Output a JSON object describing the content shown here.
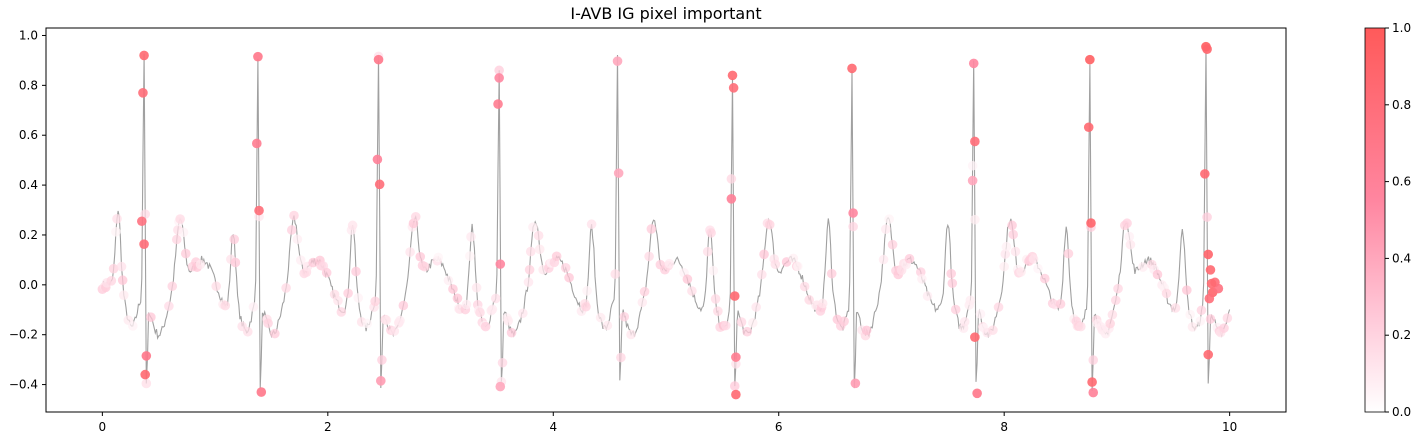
{
  "chart_data": {
    "type": "line+scatter",
    "title": "I-AVB IG pixel important",
    "xlabel": "",
    "ylabel": "",
    "xlim": [
      -0.5,
      10.5
    ],
    "ylim": [
      -0.51,
      1.03
    ],
    "x_ticks": [
      0,
      2,
      4,
      6,
      8,
      10
    ],
    "y_ticks": [
      -0.4,
      -0.2,
      0.0,
      0.2,
      0.4,
      0.6,
      0.8,
      1.0
    ],
    "colorbar": {
      "min": 0.0,
      "max": 1.0,
      "ticks": [
        0.0,
        0.2,
        0.4,
        0.6,
        0.8,
        1.0
      ],
      "low_color": "#ffffff",
      "high_color": "#ff5a5a"
    },
    "line_color": "#a0a0a0",
    "beat_times": [
      0.14,
      1.16,
      2.22,
      3.28,
      4.34,
      5.39,
      6.44,
      7.5,
      8.55,
      9.58
    ],
    "r_peaks": [
      {
        "x": 0.37,
        "y": 0.92
      },
      {
        "x": 1.38,
        "y": 0.915
      },
      {
        "x": 2.45,
        "y": 0.903
      },
      {
        "x": 3.52,
        "y": 0.83
      },
      {
        "x": 4.57,
        "y": 0.897
      },
      {
        "x": 5.59,
        "y": 0.84
      },
      {
        "x": 6.65,
        "y": 0.868
      },
      {
        "x": 7.73,
        "y": 0.888
      },
      {
        "x": 8.76,
        "y": 0.903
      },
      {
        "x": 9.79,
        "y": 0.955
      }
    ],
    "highlighted_points": [
      {
        "x": 0.37,
        "y": 0.92,
        "v": 0.85
      },
      {
        "x": 0.36,
        "y": 0.77,
        "v": 0.8
      },
      {
        "x": 0.35,
        "y": 0.255,
        "v": 0.75
      },
      {
        "x": 0.37,
        "y": 0.163,
        "v": 0.8
      },
      {
        "x": 0.39,
        "y": -0.285,
        "v": 0.7
      },
      {
        "x": 0.38,
        "y": -0.36,
        "v": 0.85
      },
      {
        "x": 1.38,
        "y": 0.915,
        "v": 0.7
      },
      {
        "x": 1.37,
        "y": 0.567,
        "v": 0.65
      },
      {
        "x": 1.39,
        "y": 0.298,
        "v": 0.8
      },
      {
        "x": 1.41,
        "y": -0.43,
        "v": 0.7
      },
      {
        "x": 2.45,
        "y": 0.903,
        "v": 0.7
      },
      {
        "x": 2.44,
        "y": 0.503,
        "v": 0.6
      },
      {
        "x": 2.46,
        "y": 0.403,
        "v": 0.8
      },
      {
        "x": 2.47,
        "y": -0.385,
        "v": 0.45
      },
      {
        "x": 3.52,
        "y": 0.83,
        "v": 0.55
      },
      {
        "x": 3.51,
        "y": 0.725,
        "v": 0.65
      },
      {
        "x": 3.53,
        "y": 0.083,
        "v": 0.55
      },
      {
        "x": 3.53,
        "y": -0.408,
        "v": 0.4
      },
      {
        "x": 4.57,
        "y": 0.897,
        "v": 0.4
      },
      {
        "x": 4.58,
        "y": 0.448,
        "v": 0.4
      },
      {
        "x": 5.59,
        "y": 0.84,
        "v": 0.85
      },
      {
        "x": 5.6,
        "y": 0.79,
        "v": 0.8
      },
      {
        "x": 5.58,
        "y": 0.345,
        "v": 0.6
      },
      {
        "x": 5.61,
        "y": -0.045,
        "v": 0.85
      },
      {
        "x": 5.62,
        "y": -0.29,
        "v": 0.65
      },
      {
        "x": 5.62,
        "y": -0.44,
        "v": 0.85
      },
      {
        "x": 6.65,
        "y": 0.868,
        "v": 0.85
      },
      {
        "x": 6.66,
        "y": 0.288,
        "v": 0.55
      },
      {
        "x": 6.68,
        "y": -0.395,
        "v": 0.45
      },
      {
        "x": 7.73,
        "y": 0.888,
        "v": 0.55
      },
      {
        "x": 7.74,
        "y": 0.575,
        "v": 0.8
      },
      {
        "x": 7.74,
        "y": -0.21,
        "v": 0.85
      },
      {
        "x": 7.76,
        "y": -0.435,
        "v": 0.7
      },
      {
        "x": 7.72,
        "y": 0.418,
        "v": 0.4
      },
      {
        "x": 8.76,
        "y": 0.903,
        "v": 0.95
      },
      {
        "x": 8.75,
        "y": 0.632,
        "v": 0.85
      },
      {
        "x": 8.77,
        "y": 0.248,
        "v": 0.9
      },
      {
        "x": 8.78,
        "y": -0.39,
        "v": 0.85
      },
      {
        "x": 8.79,
        "y": -0.432,
        "v": 0.6
      },
      {
        "x": 9.79,
        "y": 0.955,
        "v": 0.95
      },
      {
        "x": 9.8,
        "y": 0.945,
        "v": 0.9
      },
      {
        "x": 9.78,
        "y": 0.445,
        "v": 0.85
      },
      {
        "x": 9.81,
        "y": 0.122,
        "v": 0.9
      },
      {
        "x": 9.83,
        "y": 0.06,
        "v": 0.85
      },
      {
        "x": 9.85,
        "y": -0.03,
        "v": 0.9
      },
      {
        "x": 9.82,
        "y": -0.055,
        "v": 0.8
      },
      {
        "x": 9.81,
        "y": -0.28,
        "v": 0.85
      },
      {
        "x": 9.87,
        "y": 0.01,
        "v": 0.8
      },
      {
        "x": 9.9,
        "y": -0.015,
        "v": 0.75
      },
      {
        "x": 9.84,
        "y": 0.005,
        "v": 0.85
      }
    ]
  }
}
